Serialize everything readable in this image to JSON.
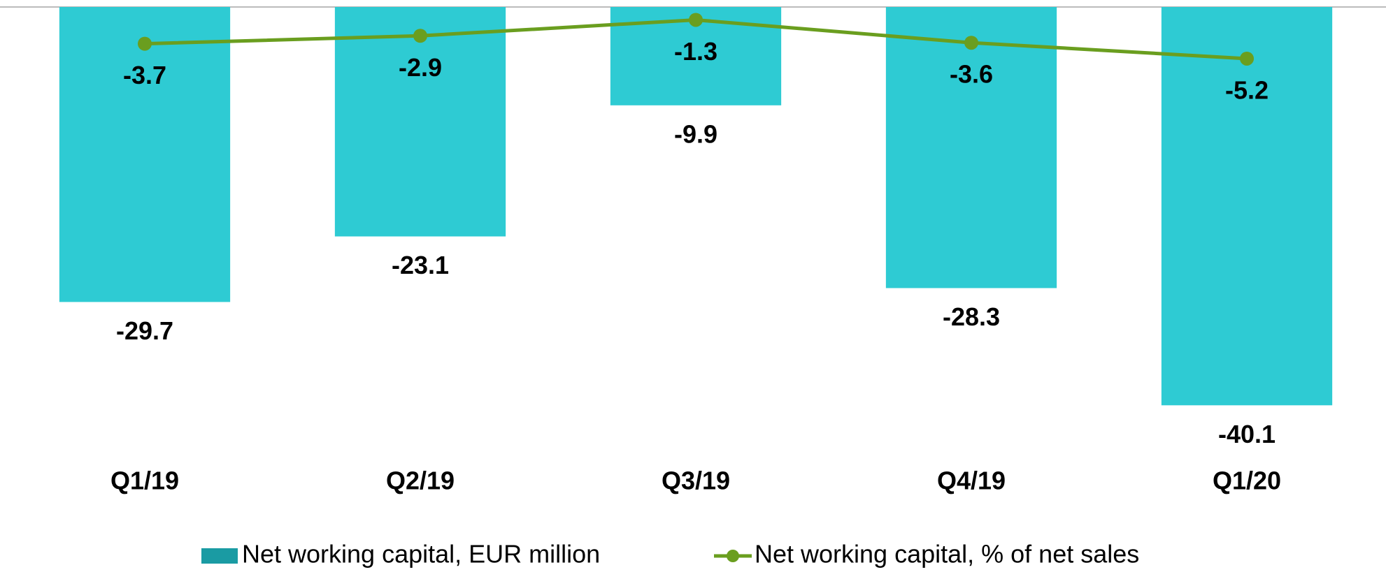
{
  "chart_data": {
    "type": "bar",
    "categories": [
      "Q1/19",
      "Q2/19",
      "Q3/19",
      "Q4/19",
      "Q1/20"
    ],
    "series": [
      {
        "name": "Net working capital, EUR million",
        "type": "bar",
        "color": "#2ecbd3",
        "legend_color": "#1a9ba3",
        "values": [
          -29.7,
          -23.1,
          -9.9,
          -28.3,
          -40.1
        ]
      },
      {
        "name": "Net working capital, % of net sales",
        "type": "line",
        "color": "#6a9e1f",
        "values": [
          -3.7,
          -2.9,
          -1.3,
          -3.6,
          -5.2
        ]
      }
    ],
    "ylim": [
      -45,
      0
    ],
    "grid": false,
    "legend": "bottom"
  }
}
